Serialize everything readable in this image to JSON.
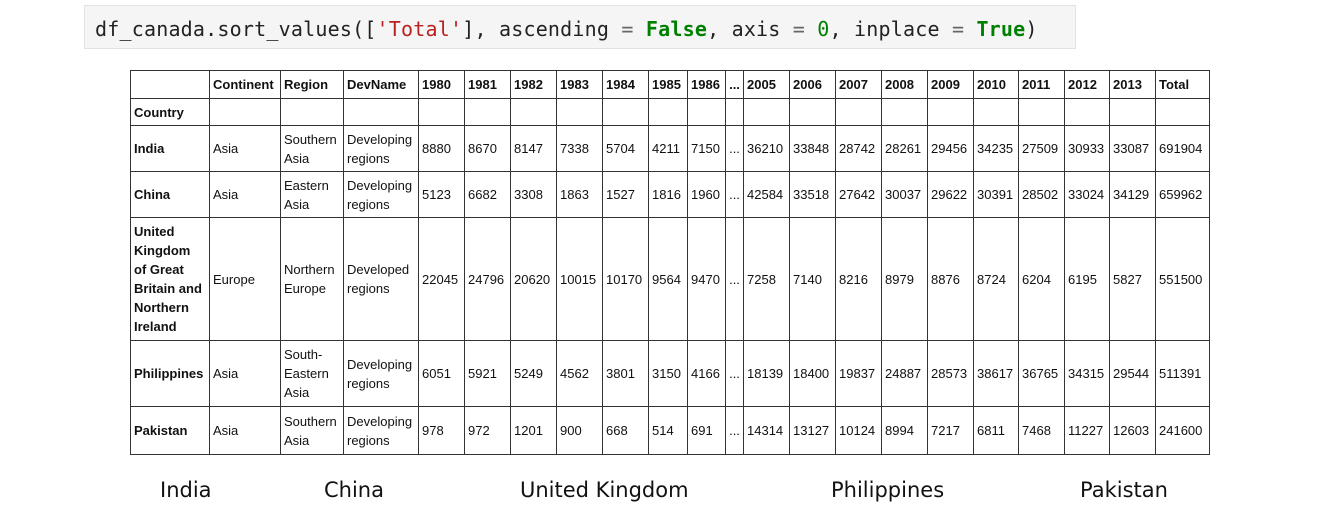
{
  "code": {
    "call": "df_canada.sort_values",
    "open": "([",
    "sort_key": "'Total'",
    "sep1": "], ",
    "arg_ascending": "ascending",
    "eq": " = ",
    "ascending_value": "False",
    "sep2": ", ",
    "arg_axis": "axis",
    "axis_value": "0",
    "arg_inplace": "inplace",
    "inplace_value": "True",
    "close": ")"
  },
  "table": {
    "columns": [
      "",
      "Continent",
      "Region",
      "DevName",
      "1980",
      "1981",
      "1982",
      "1983",
      "1984",
      "1985",
      "1986",
      "...",
      "2005",
      "2006",
      "2007",
      "2008",
      "2009",
      "2010",
      "2011",
      "2012",
      "2013",
      "Total"
    ],
    "index_name": "Country",
    "rows": [
      {
        "country": "India",
        "continent": "Asia",
        "region": "Southern Asia",
        "devname": "Developing regions",
        "values": [
          "8880",
          "8670",
          "8147",
          "7338",
          "5704",
          "4211",
          "7150",
          "...",
          "36210",
          "33848",
          "28742",
          "28261",
          "29456",
          "34235",
          "27509",
          "30933",
          "33087",
          "691904"
        ]
      },
      {
        "country": "China",
        "continent": "Asia",
        "region": "Eastern Asia",
        "devname": "Developing regions",
        "values": [
          "5123",
          "6682",
          "3308",
          "1863",
          "1527",
          "1816",
          "1960",
          "...",
          "42584",
          "33518",
          "27642",
          "30037",
          "29622",
          "30391",
          "28502",
          "33024",
          "34129",
          "659962"
        ]
      },
      {
        "country": "United Kingdom of Great Britain and Northern Ireland",
        "continent": "Europe",
        "region": "Northern Europe",
        "devname": "Developed regions",
        "values": [
          "22045",
          "24796",
          "20620",
          "10015",
          "10170",
          "9564",
          "9470",
          "...",
          "7258",
          "7140",
          "8216",
          "8979",
          "8876",
          "8724",
          "6204",
          "6195",
          "5827",
          "551500"
        ]
      },
      {
        "country": "Philippines",
        "continent": "Asia",
        "region": "South-Eastern Asia",
        "devname": "Developing regions",
        "values": [
          "6051",
          "5921",
          "5249",
          "4562",
          "3801",
          "3150",
          "4166",
          "...",
          "18139",
          "18400",
          "19837",
          "24887",
          "28573",
          "38617",
          "36765",
          "34315",
          "29544",
          "511391"
        ]
      },
      {
        "country": "Pakistan",
        "continent": "Asia",
        "region": "Southern Asia",
        "devname": "Developing regions",
        "values": [
          "978",
          "972",
          "1201",
          "900",
          "668",
          "514",
          "691",
          "...",
          "14314",
          "13127",
          "10124",
          "8994",
          "7217",
          "6811",
          "7468",
          "11227",
          "12603",
          "241600"
        ]
      }
    ]
  },
  "captions": [
    "India",
    "China",
    "United Kingdom",
    "Philippines",
    "Pakistan"
  ]
}
